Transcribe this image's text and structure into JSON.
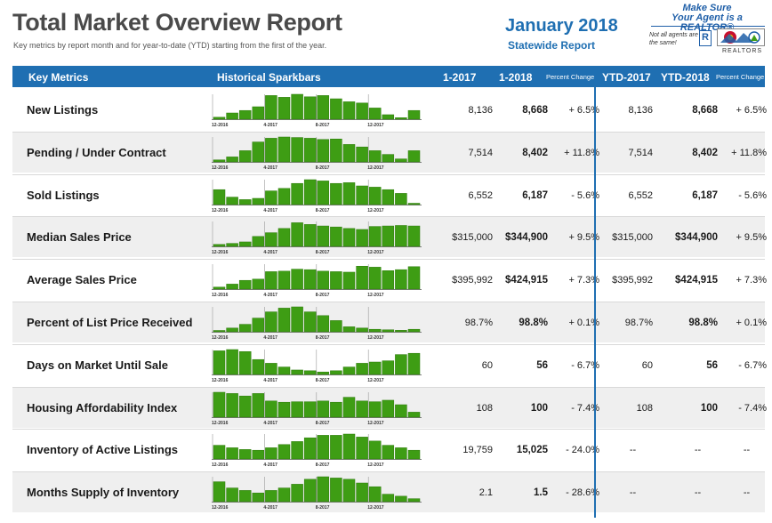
{
  "header": {
    "title": "Total Market Overview Report",
    "subtitle": "Key metrics by report month and for year-to-date (YTD) starting from the first of the year.",
    "month": "January 2018",
    "region": "Statewide Report"
  },
  "logo": {
    "line1": "Make Sure",
    "line2": "Your Agent is a REALTOR®",
    "small": "Not all agents are the same!",
    "r_mark": "R",
    "realtors": "REALTORS"
  },
  "columns": {
    "metric": "Key Metrics",
    "sparkbars": "Historical Sparkbars",
    "m1": "1-2017",
    "m2": "1-2018",
    "pct": "Percent Change",
    "ytd1": "YTD-2017",
    "ytd2": "YTD-2018",
    "ytdpct": "Percent Change"
  },
  "spark_axis": [
    "12-2016",
    "4-2017",
    "8-2017",
    "12-2017"
  ],
  "colors": {
    "accent": "#1f6fb2",
    "bar": "#3e9d14",
    "bar_edge": "#2e7a0c"
  },
  "rows": [
    {
      "label": "New Listings",
      "m1": "8,136",
      "m2": "8,668",
      "pct": "+ 6.5%",
      "ytd1": "8,136",
      "ytd2": "8,668",
      "ytdpct": "+ 6.5%",
      "bars": [
        0.08,
        0.25,
        0.35,
        0.5,
        0.95,
        0.88,
        1.0,
        0.9,
        0.95,
        0.82,
        0.7,
        0.65,
        0.45,
        0.18,
        0.06,
        0.35
      ]
    },
    {
      "label": "Pending / Under Contract",
      "m1": "7,514",
      "m2": "8,402",
      "pct": "+ 11.8%",
      "ytd1": "7,514",
      "ytd2": "8,402",
      "ytdpct": "+ 11.8%",
      "bars": [
        0.08,
        0.2,
        0.45,
        0.8,
        0.95,
        1.0,
        0.98,
        0.95,
        0.9,
        0.92,
        0.7,
        0.6,
        0.45,
        0.3,
        0.12,
        0.45
      ]
    },
    {
      "label": "Sold Listings",
      "m1": "6,552",
      "m2": "6,187",
      "pct": "- 5.6%",
      "ytd1": "6,552",
      "ytd2": "6,187",
      "ytdpct": "- 5.6%",
      "bars": [
        0.6,
        0.3,
        0.2,
        0.25,
        0.55,
        0.65,
        0.85,
        1.0,
        0.95,
        0.85,
        0.88,
        0.75,
        0.7,
        0.6,
        0.45,
        0.05
      ]
    },
    {
      "label": "Median Sales Price",
      "m1": "$315,000",
      "m2": "$344,900",
      "pct": "+ 9.5%",
      "ytd1": "$315,000",
      "ytd2": "$344,900",
      "ytdpct": "+ 9.5%",
      "bars": [
        0.08,
        0.12,
        0.18,
        0.4,
        0.55,
        0.72,
        0.95,
        0.88,
        0.82,
        0.78,
        0.72,
        0.68,
        0.8,
        0.82,
        0.84,
        0.82
      ]
    },
    {
      "label": "Average Sales Price",
      "m1": "$395,992",
      "m2": "$424,915",
      "pct": "+ 7.3%",
      "ytd1": "$395,992",
      "ytd2": "$424,915",
      "ytdpct": "+ 7.3%",
      "bars": [
        0.08,
        0.2,
        0.35,
        0.4,
        0.7,
        0.72,
        0.8,
        0.78,
        0.72,
        0.7,
        0.68,
        0.92,
        0.88,
        0.74,
        0.78,
        0.9
      ]
    },
    {
      "label": "Percent of List Price Received",
      "m1": "98.7%",
      "m2": "98.8%",
      "pct": "+ 0.1%",
      "ytd1": "98.7%",
      "ytd2": "98.8%",
      "ytdpct": "+ 0.1%",
      "bars": [
        0.05,
        0.15,
        0.3,
        0.55,
        0.8,
        0.95,
        1.0,
        0.8,
        0.65,
        0.45,
        0.2,
        0.15,
        0.1,
        0.08,
        0.06,
        0.1
      ]
    },
    {
      "label": "Days on Market Until Sale",
      "m1": "60",
      "m2": "56",
      "pct": "- 6.7%",
      "ytd1": "60",
      "ytd2": "56",
      "ytdpct": "- 6.7%",
      "bars": [
        0.95,
        1.0,
        0.92,
        0.6,
        0.45,
        0.3,
        0.18,
        0.15,
        0.1,
        0.15,
        0.3,
        0.45,
        0.5,
        0.55,
        0.8,
        0.85
      ]
    },
    {
      "label": "Housing Affordability Index",
      "m1": "108",
      "m2": "100",
      "pct": "- 7.4%",
      "ytd1": "108",
      "ytd2": "100",
      "ytdpct": "- 7.4%",
      "bars": [
        1.0,
        0.95,
        0.85,
        0.95,
        0.65,
        0.6,
        0.62,
        0.62,
        0.65,
        0.6,
        0.8,
        0.65,
        0.62,
        0.68,
        0.5,
        0.2
      ]
    },
    {
      "label": "Inventory of Active Listings",
      "m1": "19,759",
      "m2": "15,025",
      "pct": "- 24.0%",
      "ytd1": "--",
      "ytd2": "--",
      "ytdpct": "--",
      "bars": [
        0.55,
        0.45,
        0.38,
        0.35,
        0.45,
        0.58,
        0.7,
        0.85,
        0.95,
        0.95,
        1.0,
        0.88,
        0.72,
        0.55,
        0.45,
        0.35
      ]
    },
    {
      "label": "Months Supply of Inventory",
      "m1": "2.1",
      "m2": "1.5",
      "pct": "- 28.6%",
      "ytd1": "--",
      "ytd2": "--",
      "ytdpct": "--",
      "bars": [
        0.8,
        0.55,
        0.45,
        0.35,
        0.45,
        0.55,
        0.7,
        0.9,
        1.0,
        0.95,
        0.9,
        0.75,
        0.6,
        0.3,
        0.22,
        0.12
      ]
    }
  ]
}
